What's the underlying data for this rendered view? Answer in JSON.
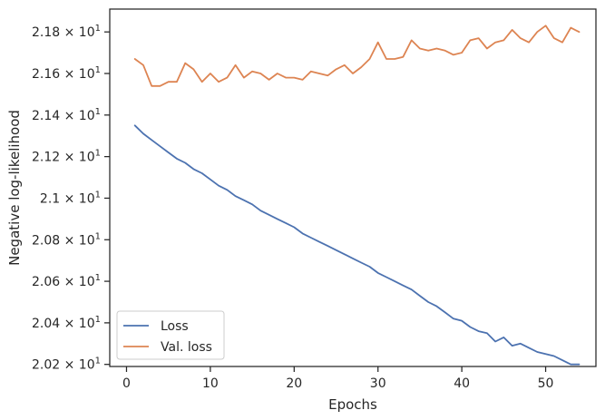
{
  "chart_data": {
    "type": "line",
    "xlabel": "Epochs",
    "ylabel": "Negative log-likelihood",
    "xlim": [
      -2,
      56
    ],
    "ylim": [
      20.19,
      21.91
    ],
    "x_ticks": [
      0,
      10,
      20,
      30,
      40,
      50
    ],
    "y_ticks": [
      {
        "value": 20.2,
        "label": "2.02 × 10^1"
      },
      {
        "value": 20.4,
        "label": "2.04 × 10^1"
      },
      {
        "value": 20.6,
        "label": "2.06 × 10^1"
      },
      {
        "value": 20.8,
        "label": "2.08 × 10^1"
      },
      {
        "value": 21.0,
        "label": "2.1 × 10^1"
      },
      {
        "value": 21.2,
        "label": "2.12 × 10^1"
      },
      {
        "value": 21.4,
        "label": "2.14 × 10^1"
      },
      {
        "value": 21.6,
        "label": "2.16 × 10^1"
      },
      {
        "value": 21.8,
        "label": "2.18 × 10^1"
      }
    ],
    "grid": false,
    "legend_position": "lower-left",
    "x": [
      1,
      2,
      3,
      4,
      5,
      6,
      7,
      8,
      9,
      10,
      11,
      12,
      13,
      14,
      15,
      16,
      17,
      18,
      19,
      20,
      21,
      22,
      23,
      24,
      25,
      26,
      27,
      28,
      29,
      30,
      31,
      32,
      33,
      34,
      35,
      36,
      37,
      38,
      39,
      40,
      41,
      42,
      43,
      44,
      45,
      46,
      47,
      48,
      49,
      50,
      51,
      52,
      53,
      54
    ],
    "series": [
      {
        "name": "Loss",
        "color": "#4c72b0",
        "values": [
          21.35,
          21.31,
          21.28,
          21.25,
          21.22,
          21.19,
          21.17,
          21.14,
          21.12,
          21.09,
          21.06,
          21.04,
          21.01,
          20.99,
          20.97,
          20.94,
          20.92,
          20.9,
          20.88,
          20.86,
          20.83,
          20.81,
          20.79,
          20.77,
          20.75,
          20.73,
          20.71,
          20.69,
          20.67,
          20.64,
          20.62,
          20.6,
          20.58,
          20.56,
          20.53,
          20.5,
          20.48,
          20.45,
          20.42,
          20.41,
          20.38,
          20.36,
          20.35,
          20.31,
          20.33,
          20.29,
          20.3,
          20.28,
          20.26,
          20.25,
          20.24,
          20.22,
          20.2,
          20.2
        ]
      },
      {
        "name": "Val. loss",
        "color": "#dd8452",
        "values": [
          21.67,
          21.64,
          21.54,
          21.54,
          21.56,
          21.56,
          21.65,
          21.62,
          21.56,
          21.6,
          21.56,
          21.58,
          21.64,
          21.58,
          21.61,
          21.6,
          21.57,
          21.6,
          21.58,
          21.58,
          21.57,
          21.61,
          21.6,
          21.59,
          21.62,
          21.64,
          21.6,
          21.63,
          21.67,
          21.75,
          21.67,
          21.67,
          21.68,
          21.76,
          21.72,
          21.71,
          21.72,
          21.71,
          21.69,
          21.7,
          21.76,
          21.77,
          21.72,
          21.75,
          21.76,
          21.81,
          21.77,
          21.75,
          21.8,
          21.83,
          21.77,
          21.75,
          21.82,
          21.8
        ]
      }
    ]
  }
}
